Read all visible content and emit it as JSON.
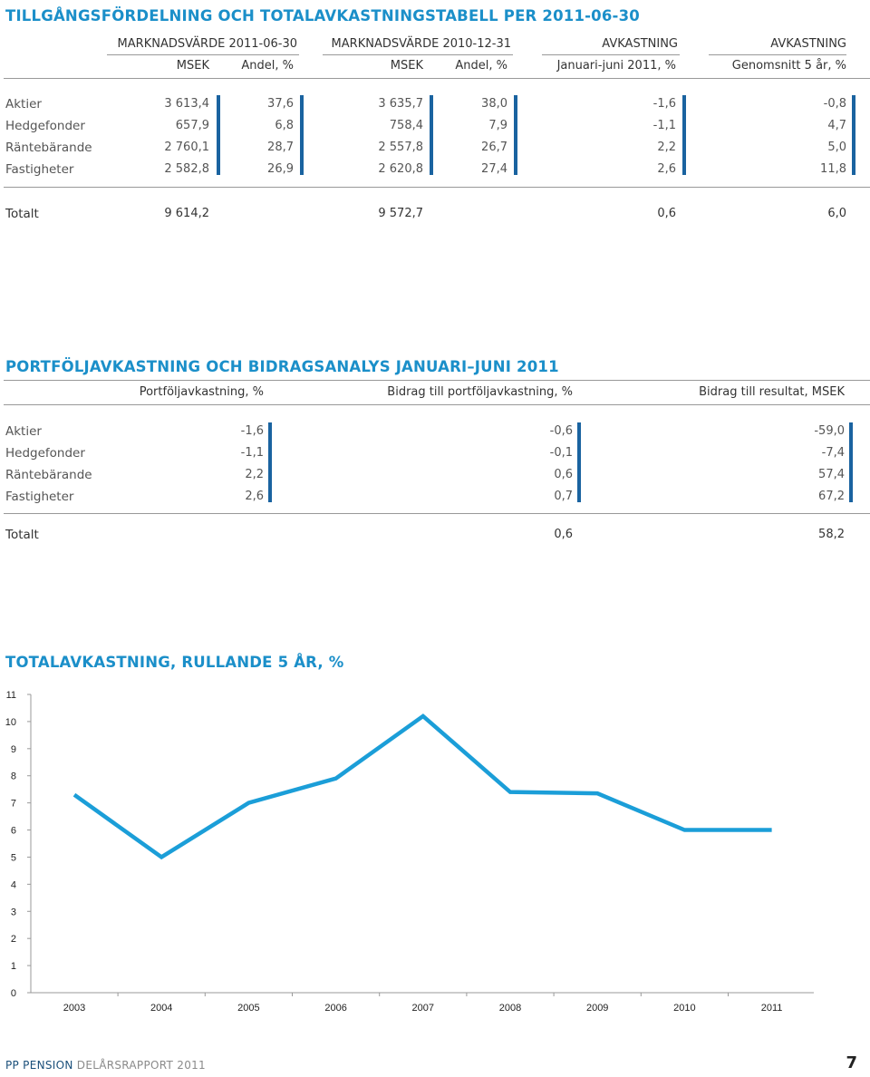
{
  "section1": {
    "title": "TILLGÅNGSFÖRDELNING OCH TOTALAVKASTNINGSTABELL PER 2011-06-30",
    "group_headers": [
      "MARKNADSVÄRDE 2011-06-30",
      "MARKNADSVÄRDE 2010-12-31",
      "AVKASTNING",
      "AVKASTNING"
    ],
    "sub_headers": [
      "MSEK",
      "Andel, %",
      "MSEK",
      "Andel, %",
      "Januari-juni 2011, %",
      "Genomsnitt 5 år, %"
    ],
    "rows": [
      {
        "label": "Aktier",
        "values": [
          "3 613,4",
          "37,6",
          "3 635,7",
          "38,0",
          "-1,6",
          "-0,8"
        ]
      },
      {
        "label": "Hedgefonder",
        "values": [
          "657,9",
          "6,8",
          "758,4",
          "7,9",
          "-1,1",
          "4,7"
        ]
      },
      {
        "label": "Räntebärande",
        "values": [
          "2 760,1",
          "28,7",
          "2 557,8",
          "26,7",
          "2,2",
          "5,0"
        ]
      },
      {
        "label": "Fastigheter",
        "values": [
          "2 582,8",
          "26,9",
          "2 620,8",
          "27,4",
          "2,6",
          "11,8"
        ]
      }
    ],
    "total": {
      "label": "Totalt",
      "values": [
        "9 614,2",
        "9 572,7",
        "0,6",
        "6,0"
      ]
    }
  },
  "section2": {
    "title": "PORTFÖLJAVKASTNING OCH BIDRAGSANALYS JANUARI–JUNI 2011",
    "headers": [
      "Portföljavkastning, %",
      "Bidrag till portföljavkastning, %",
      "Bidrag till resultat, MSEK"
    ],
    "rows": [
      {
        "label": "Aktier",
        "values": [
          "-1,6",
          "-0,6",
          "-59,0"
        ]
      },
      {
        "label": "Hedgefonder",
        "values": [
          "-1,1",
          "-0,1",
          "-7,4"
        ]
      },
      {
        "label": "Räntebärande",
        "values": [
          "2,2",
          "0,6",
          "57,4"
        ]
      },
      {
        "label": "Fastigheter",
        "values": [
          "2,6",
          "0,7",
          "67,2"
        ]
      }
    ],
    "total": {
      "label": "Totalt",
      "values": [
        "0,6",
        "58,2"
      ]
    }
  },
  "section3": {
    "title": "TOTALAVKASTNING, RULLANDE 5 ÅR, %"
  },
  "chart_data": {
    "type": "line",
    "title": "TOTALAVKASTNING, RULLANDE 5 ÅR, %",
    "x": [
      "2003",
      "2004",
      "2005",
      "2006",
      "2007",
      "2008",
      "2009",
      "2010",
      "2011"
    ],
    "series": [
      {
        "values": [
          7.3,
          5.0,
          7.0,
          7.9,
          10.2,
          7.4,
          7.35,
          6.0,
          6.0
        ]
      }
    ],
    "ylim": [
      0,
      11
    ],
    "yticks": [
      "0",
      "1",
      "2",
      "3",
      "4",
      "5",
      "6",
      "7",
      "8",
      "9",
      "10",
      "11"
    ],
    "grid": false,
    "line_color": "#1b9ed8"
  },
  "footer": {
    "brand": "PP PENSION",
    "report": "DELÅRSRAPPORT 2011",
    "page": "7",
    "brand_color": "#1a4f7a",
    "report_color": "#8a8a8a"
  },
  "colors": {
    "accent": "#1b8fc9",
    "bar_dark": "#1a63a0"
  }
}
